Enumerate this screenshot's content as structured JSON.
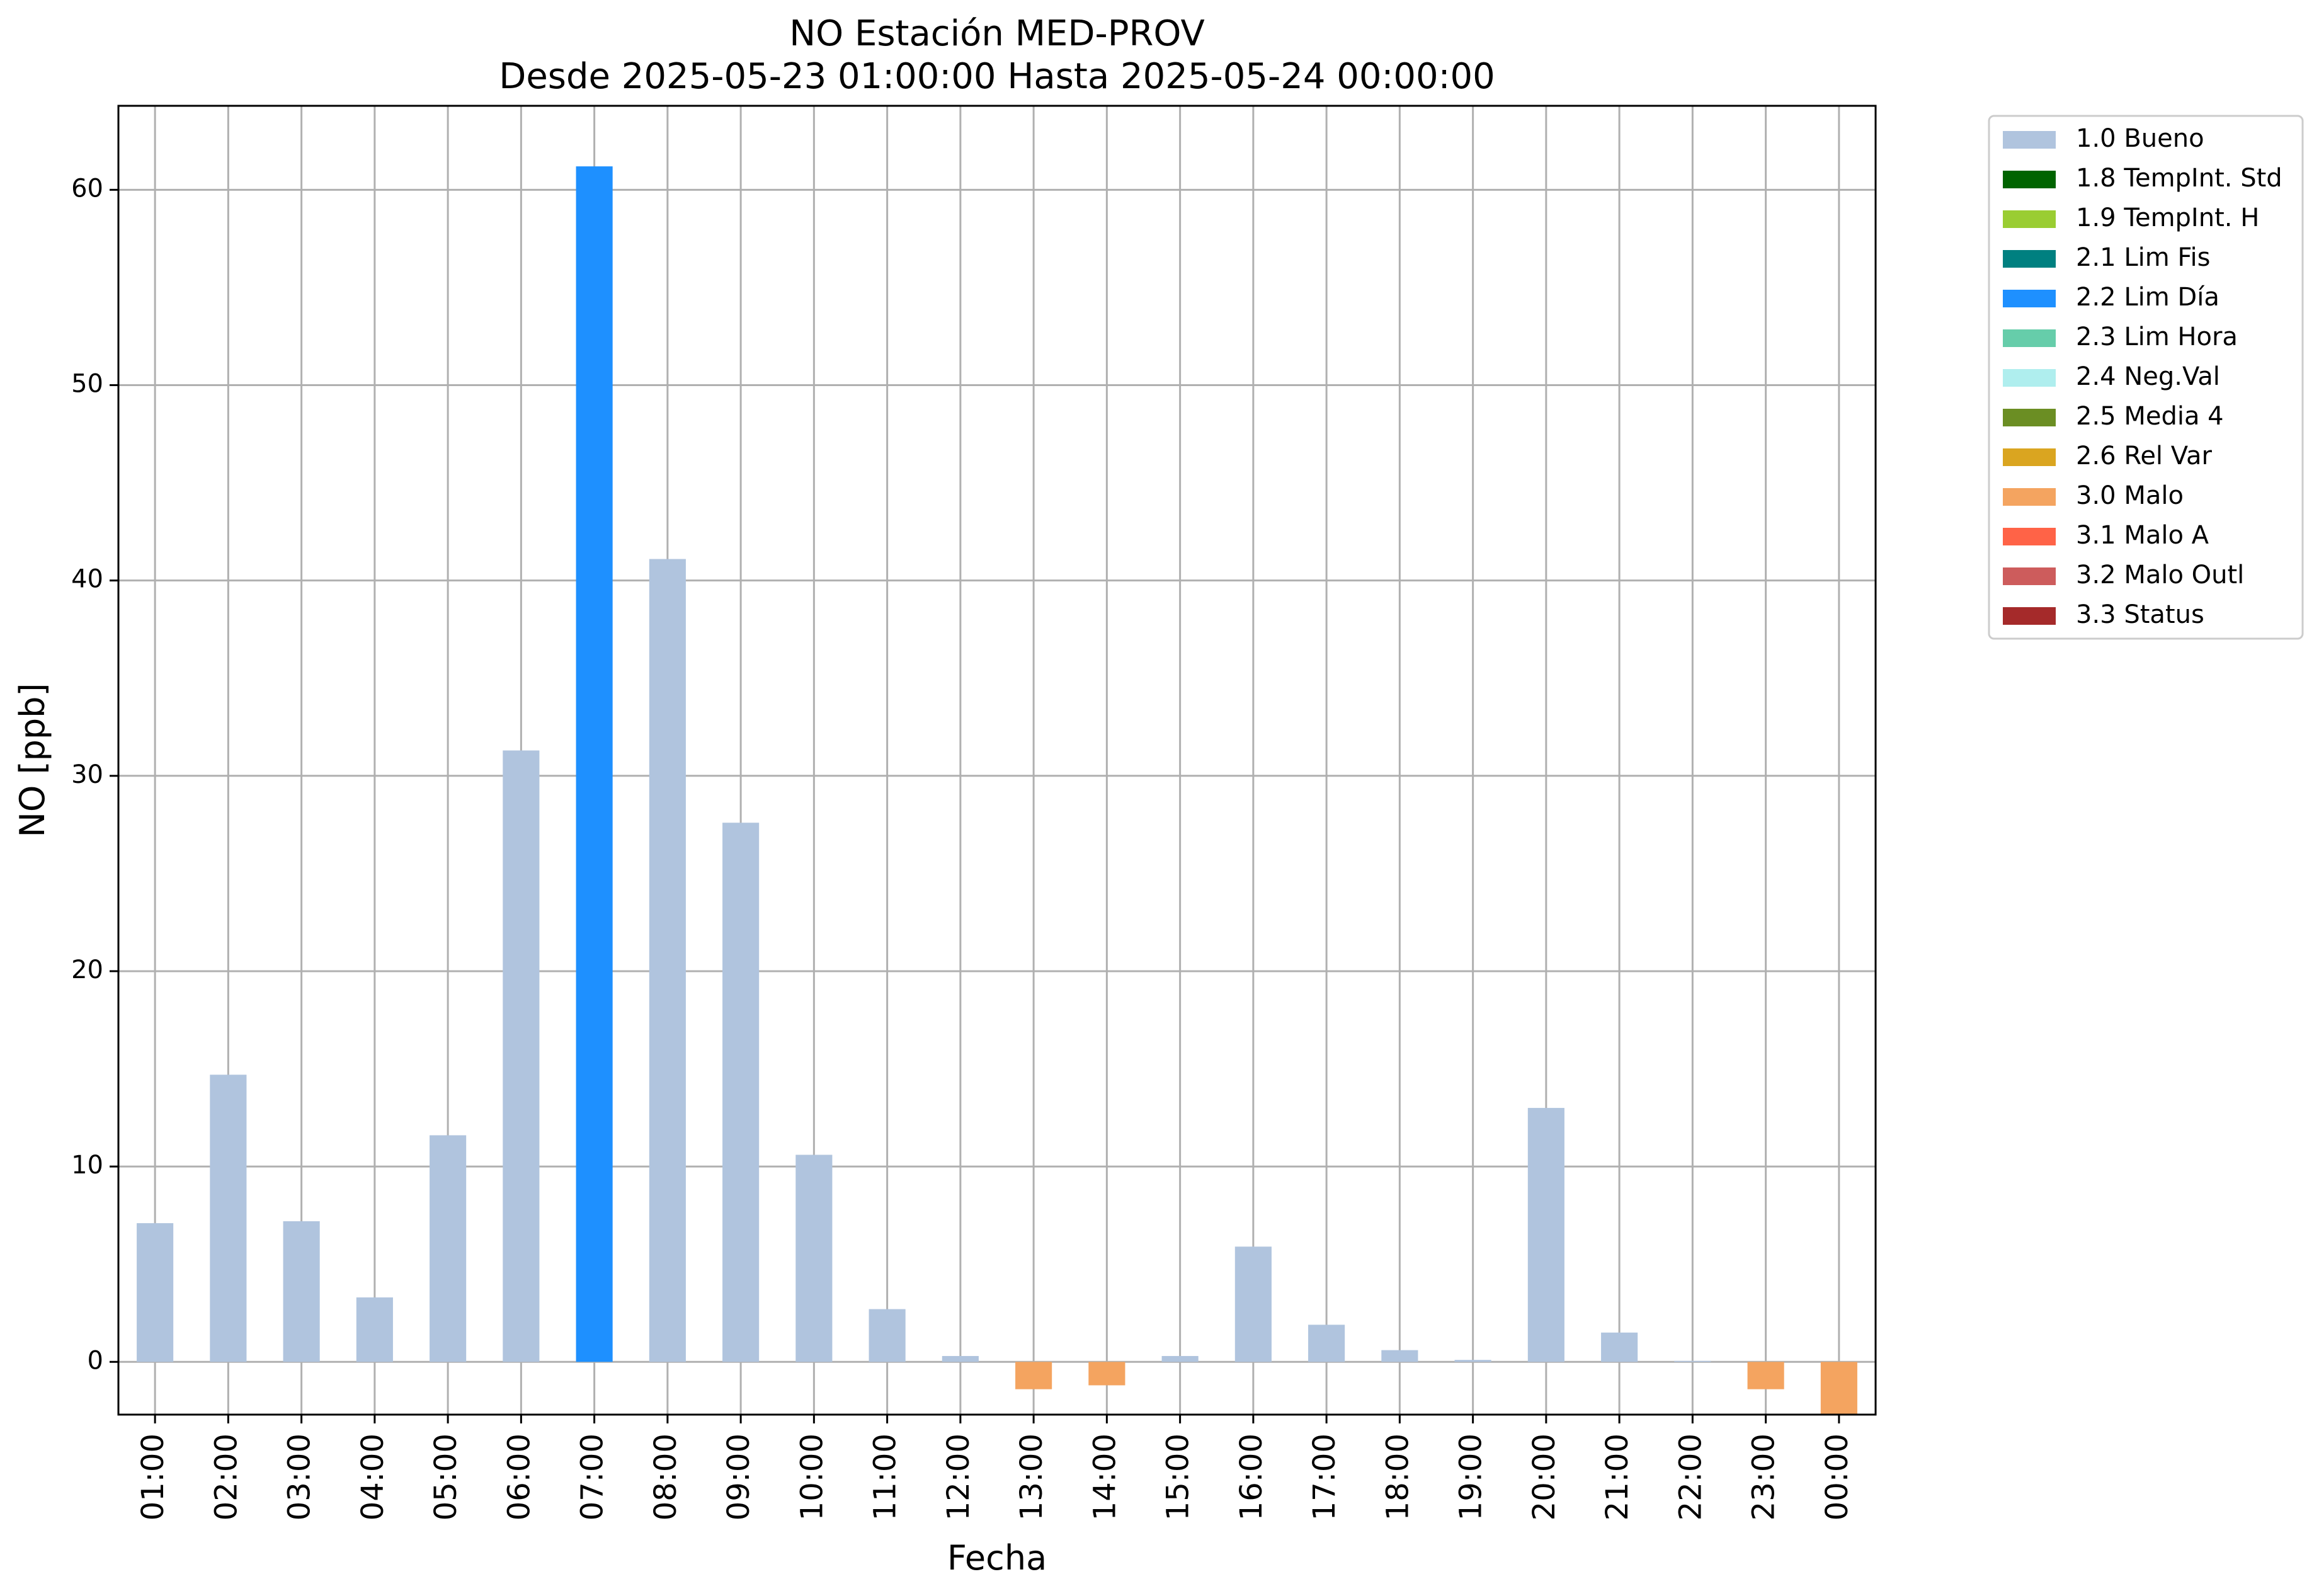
{
  "chart_data": {
    "type": "bar",
    "title": "NO Estación MED-PROV",
    "subtitle": "Desde 2025-05-23 01:00:00 Hasta 2025-05-24 00:00:00",
    "xlabel": "Fecha",
    "ylabel": "NO [ppb]",
    "ylim": [
      -2.7,
      64.3
    ],
    "yticks": [
      0,
      10,
      20,
      30,
      40,
      50,
      60
    ],
    "grid": true,
    "legend_position": "outside-top-right",
    "categories": [
      "01:00",
      "02:00",
      "03:00",
      "04:00",
      "05:00",
      "06:00",
      "07:00",
      "08:00",
      "09:00",
      "10:00",
      "11:00",
      "12:00",
      "13:00",
      "14:00",
      "15:00",
      "16:00",
      "17:00",
      "18:00",
      "19:00",
      "20:00",
      "21:00",
      "22:00",
      "23:00",
      "00:00"
    ],
    "values": [
      7.1,
      14.7,
      7.2,
      3.3,
      11.6,
      31.3,
      61.2,
      41.1,
      27.6,
      10.6,
      2.7,
      0.3,
      -1.4,
      -1.2,
      0.3,
      5.9,
      1.9,
      0.6,
      0.1,
      13.0,
      1.5,
      0.05,
      -1.4,
      -2.7
    ],
    "flags": [
      "1.0",
      "1.0",
      "1.0",
      "1.0",
      "1.0",
      "1.0",
      "2.2",
      "1.0",
      "1.0",
      "1.0",
      "1.0",
      "1.0",
      "3.0",
      "3.0",
      "1.0",
      "1.0",
      "1.0",
      "1.0",
      "1.0",
      "1.0",
      "1.0",
      "1.0",
      "3.0",
      "3.0"
    ],
    "legend": [
      {
        "code": "1.0",
        "label": "1.0 Bueno",
        "color": "#b0c4de"
      },
      {
        "code": "1.8",
        "label": "1.8 TempInt. Std",
        "color": "#006400"
      },
      {
        "code": "1.9",
        "label": "1.9 TempInt. H",
        "color": "#9acd32"
      },
      {
        "code": "2.1",
        "label": "2.1 Lim Fis",
        "color": "#008080"
      },
      {
        "code": "2.2",
        "label": "2.2 Lim Día",
        "color": "#1e90ff"
      },
      {
        "code": "2.3",
        "label": "2.3 Lim Hora",
        "color": "#66cdaa"
      },
      {
        "code": "2.4",
        "label": "2.4 Neg.Val",
        "color": "#afeeee"
      },
      {
        "code": "2.5",
        "label": "2.5 Media 4",
        "color": "#6b8e23"
      },
      {
        "code": "2.6",
        "label": "2.6 Rel Var",
        "color": "#daa520"
      },
      {
        "code": "3.0",
        "label": "3.0 Malo",
        "color": "#f4a460"
      },
      {
        "code": "3.1",
        "label": "3.1 Malo A",
        "color": "#ff6347"
      },
      {
        "code": "3.2",
        "label": "3.2 Malo Outl",
        "color": "#cd5c5c"
      },
      {
        "code": "3.3",
        "label": "3.3 Status",
        "color": "#a52a2a"
      }
    ]
  }
}
